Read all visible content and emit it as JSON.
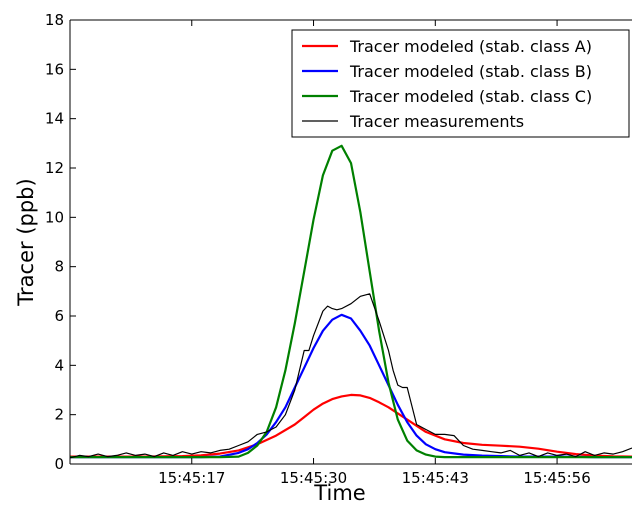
{
  "chart_data": {
    "type": "line",
    "xlabel": "Time",
    "ylabel": "Tracer (ppb)",
    "xlim": [
      0,
      60
    ],
    "ylim": [
      0,
      18
    ],
    "x_ticks": [
      {
        "value": 13,
        "label": "15:45:17"
      },
      {
        "value": 26,
        "label": "15:45:30"
      },
      {
        "value": 39,
        "label": "15:45:43"
      },
      {
        "value": 52,
        "label": "15:45:56"
      }
    ],
    "y_ticks": [
      0,
      2,
      4,
      6,
      8,
      10,
      12,
      14,
      16,
      18
    ],
    "grid": false,
    "legend_position": "top-right",
    "series": [
      {
        "name": "Tracer modeled (stab. class A)",
        "color": "#ff0000",
        "x": [
          0,
          4,
          8,
          12,
          14,
          16,
          18,
          20,
          22,
          24,
          25,
          26,
          27,
          28,
          29,
          30,
          31,
          32,
          33,
          34,
          35,
          36,
          37,
          38,
          40,
          42,
          44,
          46,
          48,
          50,
          52,
          54,
          56,
          58,
          60
        ],
        "y": [
          0.3,
          0.3,
          0.3,
          0.32,
          0.35,
          0.42,
          0.55,
          0.8,
          1.15,
          1.6,
          1.9,
          2.2,
          2.45,
          2.63,
          2.74,
          2.8,
          2.78,
          2.68,
          2.5,
          2.3,
          2.05,
          1.8,
          1.55,
          1.3,
          1.0,
          0.85,
          0.78,
          0.74,
          0.7,
          0.62,
          0.5,
          0.4,
          0.34,
          0.31,
          0.3
        ]
      },
      {
        "name": "Tracer modeled (stab. class B)",
        "color": "#0000ff",
        "x": [
          0,
          4,
          8,
          12,
          14,
          16,
          18,
          19,
          20,
          21,
          22,
          23,
          24,
          25,
          26,
          27,
          28,
          29,
          30,
          31,
          32,
          33,
          34,
          35,
          36,
          37,
          38,
          39,
          40,
          42,
          44,
          46,
          48,
          50,
          52,
          54,
          56,
          58,
          60
        ],
        "y": [
          0.28,
          0.28,
          0.28,
          0.28,
          0.28,
          0.3,
          0.45,
          0.6,
          0.85,
          1.2,
          1.7,
          2.3,
          3.1,
          3.9,
          4.7,
          5.4,
          5.85,
          6.05,
          5.9,
          5.4,
          4.8,
          4.0,
          3.2,
          2.4,
          1.7,
          1.15,
          0.8,
          0.6,
          0.48,
          0.38,
          0.34,
          0.32,
          0.3,
          0.3,
          0.3,
          0.29,
          0.28,
          0.28,
          0.28
        ]
      },
      {
        "name": "Tracer modeled (stab. class C)",
        "color": "#008000",
        "x": [
          0,
          4,
          8,
          12,
          16,
          18,
          19,
          20,
          21,
          22,
          23,
          24,
          25,
          26,
          27,
          28,
          29,
          30,
          31,
          32,
          33,
          34,
          35,
          36,
          37,
          38,
          39,
          40,
          42,
          44,
          48,
          52,
          56,
          60
        ],
        "y": [
          0.28,
          0.28,
          0.28,
          0.28,
          0.28,
          0.3,
          0.45,
          0.75,
          1.3,
          2.3,
          3.8,
          5.7,
          7.8,
          9.9,
          11.7,
          12.7,
          12.9,
          12.2,
          10.2,
          7.8,
          5.4,
          3.3,
          1.8,
          0.95,
          0.55,
          0.38,
          0.3,
          0.28,
          0.28,
          0.28,
          0.28,
          0.28,
          0.28,
          0.28
        ]
      },
      {
        "name": "Tracer measurements",
        "color": "#000000",
        "x": [
          0,
          1,
          2,
          3,
          4,
          5,
          6,
          7,
          8,
          9,
          10,
          11,
          12,
          13,
          14,
          15,
          16,
          17,
          18,
          19,
          20,
          21,
          22,
          23,
          24,
          25,
          25.5,
          26,
          27,
          27.5,
          28,
          28.5,
          29,
          30,
          31,
          32,
          33,
          34,
          34.5,
          35,
          35.5,
          36,
          37,
          38,
          39,
          40,
          41,
          42,
          43,
          44,
          45,
          46,
          47,
          48,
          49,
          50,
          51,
          52,
          53,
          54,
          55,
          56,
          57,
          58,
          59,
          60
        ],
        "y": [
          0.25,
          0.35,
          0.3,
          0.4,
          0.3,
          0.35,
          0.45,
          0.35,
          0.4,
          0.3,
          0.45,
          0.35,
          0.5,
          0.4,
          0.5,
          0.45,
          0.55,
          0.6,
          0.75,
          0.9,
          1.2,
          1.3,
          1.5,
          2.0,
          3.0,
          4.6,
          4.6,
          5.2,
          6.2,
          6.4,
          6.3,
          6.25,
          6.3,
          6.5,
          6.8,
          6.9,
          5.8,
          4.6,
          3.8,
          3.2,
          3.1,
          3.1,
          1.6,
          1.4,
          1.2,
          1.2,
          1.15,
          0.75,
          0.6,
          0.55,
          0.5,
          0.45,
          0.55,
          0.35,
          0.45,
          0.3,
          0.45,
          0.35,
          0.4,
          0.3,
          0.5,
          0.35,
          0.45,
          0.4,
          0.5,
          0.65
        ]
      }
    ]
  }
}
